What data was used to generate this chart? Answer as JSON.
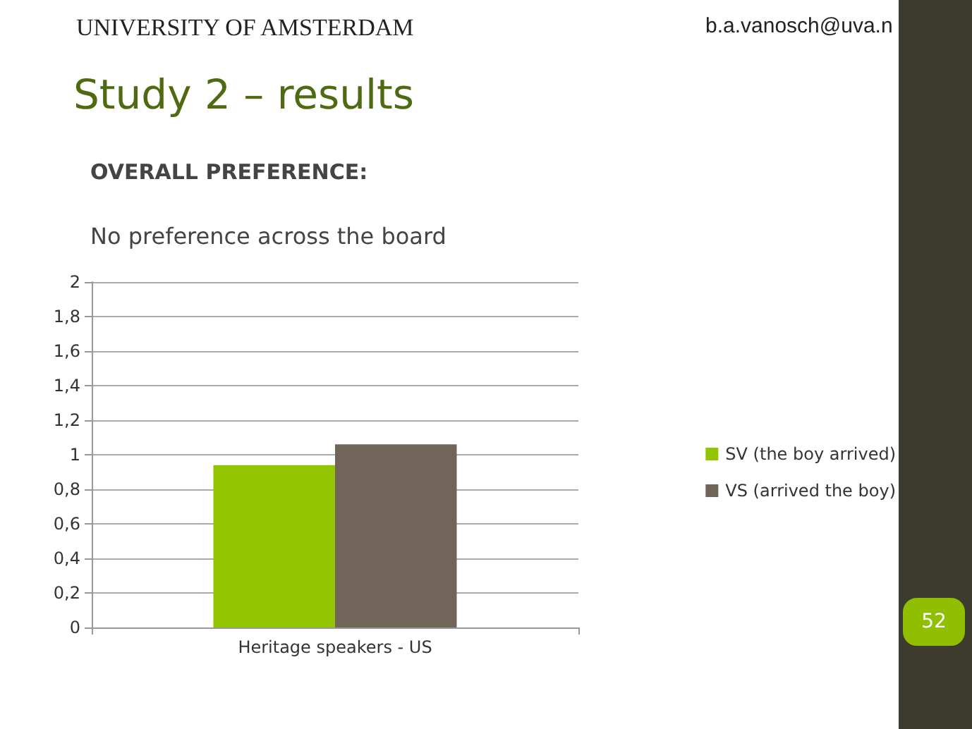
{
  "chart_data": {
    "type": "bar",
    "title": "Study 2 – results",
    "subtitle": "OVERALL PREFERENCE:",
    "annotations": [
      "UNIVERSITY OF AMSTERDAM",
      "b.a.vanosch@uva.n",
      "No preference across the board",
      "52"
    ],
    "categories": [
      "Heritage speakers - US"
    ],
    "series": [
      {
        "name": "SV (the boy arrived)",
        "color": "#92c400",
        "values": [
          0.94
        ]
      },
      {
        "name": "VS (arrived the boy)",
        "color": "#706558",
        "values": [
          1.06
        ]
      }
    ],
    "ylim": [
      0,
      2
    ],
    "yticks": [
      0,
      {
        "value": 0.2,
        "label": "0,2"
      },
      {
        "value": 0.4,
        "label": "0,4"
      },
      {
        "value": 0.6,
        "label": "0,6"
      },
      {
        "value": 0.8,
        "label": "0,8"
      },
      1,
      {
        "value": 1.2,
        "label": "1,2"
      },
      {
        "value": 1.4,
        "label": "1,4"
      },
      {
        "value": 1.6,
        "label": "1,6"
      },
      {
        "value": 1.8,
        "label": "1,8"
      },
      2
    ],
    "grid": "y",
    "legend": "right"
  }
}
